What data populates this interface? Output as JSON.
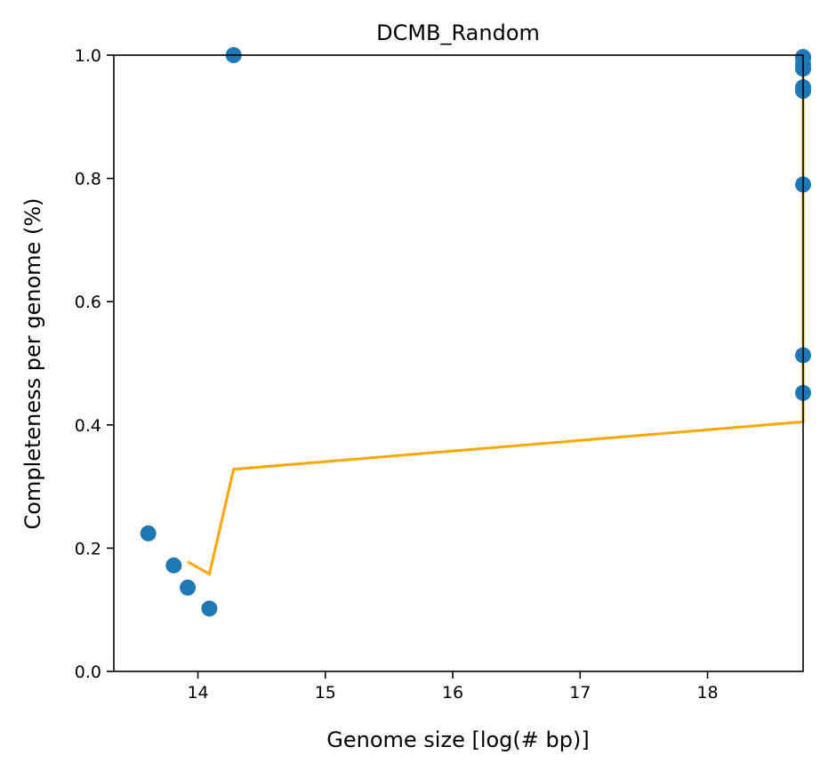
{
  "chart_data": {
    "type": "scatter",
    "title": "DCMB_Random",
    "xlabel": "Genome size [log(# bp)]",
    "ylabel": "Completeness per genome (%)",
    "xlim": [
      13.34,
      18.75
    ],
    "ylim": [
      0.0,
      1.0
    ],
    "xticks": [
      14,
      15,
      16,
      17,
      18
    ],
    "yticks": [
      0.0,
      0.2,
      0.4,
      0.6,
      0.8,
      1.0
    ],
    "xtick_labels": [
      "14",
      "15",
      "16",
      "17",
      "18"
    ],
    "ytick_labels": [
      "0.0",
      "0.2",
      "0.4",
      "0.6",
      "0.8",
      "1.0"
    ],
    "grid": false,
    "series": [
      {
        "kind": "scatter",
        "color": "#1f77b4",
        "x": [
          13.61,
          13.81,
          13.92,
          14.09,
          14.28,
          18.75,
          18.75,
          18.75,
          18.75,
          18.75,
          18.75,
          18.75,
          18.75,
          18.75
        ],
        "y": [
          0.224,
          0.172,
          0.136,
          0.102,
          1.0,
          0.995,
          0.985,
          0.978,
          0.948,
          0.942,
          0.79,
          0.513,
          0.452,
          0.997
        ]
      },
      {
        "kind": "line",
        "color": "#ffa500",
        "x": [
          13.92,
          14.09,
          14.28,
          18.75,
          18.75
        ],
        "y": [
          0.178,
          0.158,
          0.328,
          0.405,
          1.0
        ]
      }
    ]
  }
}
